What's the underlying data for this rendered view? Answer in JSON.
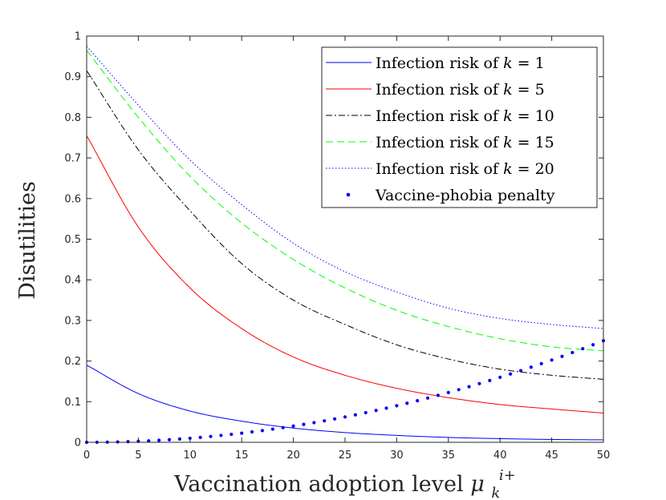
{
  "chart_data": {
    "type": "line",
    "title": "",
    "xlabel": "Vaccination adoption level",
    "xlabel_symbol": "μ",
    "xlabel_sub": "k",
    "xlabel_sup": "i+",
    "ylabel": "Disutilities",
    "xlim": [
      0,
      50
    ],
    "ylim": [
      0,
      1
    ],
    "xticks": [
      0,
      5,
      10,
      15,
      20,
      25,
      30,
      35,
      40,
      45,
      50
    ],
    "yticks": [
      0,
      0.1,
      0.2,
      0.3,
      0.4,
      0.5,
      0.6,
      0.7,
      0.8,
      0.9,
      1
    ],
    "ytick_labels": [
      "0",
      "0.1",
      "0.2",
      "0.3",
      "0.4",
      "0.5",
      "0.6",
      "0.7",
      "0.8",
      "0.9",
      "1"
    ],
    "grid": false,
    "legend_position": "top-right",
    "x": [
      0,
      5,
      10,
      15,
      20,
      25,
      30,
      35,
      40,
      45,
      50
    ],
    "series": [
      {
        "name": "Infection risk of k = 1",
        "legend_prefix": "Infection risk of ",
        "legend_var": "k",
        "legend_eq": " = 1",
        "color": "#0000ff",
        "style": "solid",
        "values": [
          0.19,
          0.12,
          0.077,
          0.052,
          0.035,
          0.024,
          0.017,
          0.012,
          0.009,
          0.007,
          0.006
        ]
      },
      {
        "name": "Infection risk of k = 5",
        "legend_prefix": "Infection risk of ",
        "legend_var": "k",
        "legend_eq": " = 5",
        "color": "#ff0000",
        "style": "solid",
        "values": [
          0.755,
          0.53,
          0.38,
          0.28,
          0.21,
          0.165,
          0.133,
          0.11,
          0.093,
          0.082,
          0.072
        ]
      },
      {
        "name": "Infection risk of k = 10",
        "legend_prefix": "Infection risk of ",
        "legend_var": "k",
        "legend_eq": " = 10",
        "color": "#000000",
        "style": "dashdot",
        "values": [
          0.915,
          0.72,
          0.57,
          0.44,
          0.35,
          0.29,
          0.24,
          0.205,
          0.18,
          0.165,
          0.155
        ]
      },
      {
        "name": "Infection risk of k = 15",
        "legend_prefix": "Infection risk of ",
        "legend_var": "k",
        "legend_eq": " = 15",
        "color": "#00ff00",
        "style": "dashed",
        "values": [
          0.965,
          0.8,
          0.655,
          0.54,
          0.45,
          0.38,
          0.325,
          0.285,
          0.255,
          0.235,
          0.225
        ]
      },
      {
        "name": "Infection risk of k = 20",
        "legend_prefix": "Infection risk of ",
        "legend_var": "k",
        "legend_eq": " = 20",
        "color": "#0000ff",
        "style": "dotted",
        "values": [
          0.975,
          0.83,
          0.695,
          0.585,
          0.49,
          0.42,
          0.37,
          0.33,
          0.305,
          0.29,
          0.28
        ]
      },
      {
        "name": "Vaccine-phobia penalty",
        "legend_prefix": "Vaccine-phobia penalty",
        "legend_var": "",
        "legend_eq": "",
        "color": "#0000ff",
        "style": "markers",
        "values": [
          0,
          0.003,
          0.01,
          0.022,
          0.04,
          0.062,
          0.09,
          0.122,
          0.16,
          0.202,
          0.25
        ]
      }
    ]
  }
}
